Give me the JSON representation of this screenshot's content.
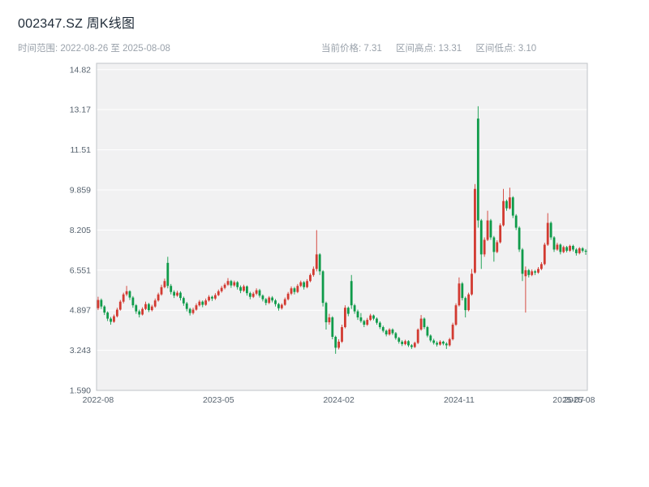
{
  "header": {
    "title": "002347.SZ 周K线图"
  },
  "subheader": {
    "time_range": "时间范围: 2022-08-26 至 2025-08-08",
    "current_price": "当前价格: 7.31",
    "range_high": "区间高点: 13.31",
    "range_low": "区间低点: 3.10"
  },
  "chart_data": {
    "type": "candlestick",
    "title": "002347.SZ 周K线图",
    "xlabel": "",
    "ylabel": "",
    "frequency": "weekly",
    "start_date": "2022-08-26",
    "end_date": "2025-08-08",
    "current_price": 7.31,
    "range_high": 13.31,
    "range_low": 3.1,
    "up_color": "#d23a31",
    "down_color": "#0f9b4a",
    "plot_bg": "#f1f1f2",
    "grid_color": "#ffffff",
    "frame_color": "#c0c4c8",
    "ylim": [
      1.59,
      15.08
    ],
    "y_ticks": [
      "1.590",
      "3.243",
      "4.897",
      "6.551",
      "8.205",
      "9.859",
      "11.51",
      "13.17",
      "14.82"
    ],
    "x_ticks": [
      {
        "pos": 0,
        "label": "2022-08"
      },
      {
        "pos": 38,
        "label": "2023-05"
      },
      {
        "pos": 76,
        "label": "2024-02"
      },
      {
        "pos": 114,
        "label": "2024-11"
      },
      {
        "pos": 148.5,
        "label": "2025-07"
      },
      {
        "pos": 152,
        "label": "2025-08"
      }
    ],
    "candles": [
      [
        4.98,
        5.45,
        4.9,
        5.32
      ],
      [
        5.32,
        5.38,
        4.95,
        5.05
      ],
      [
        5.05,
        5.1,
        4.7,
        4.8
      ],
      [
        4.8,
        4.85,
        4.45,
        4.55
      ],
      [
        4.55,
        4.62,
        4.3,
        4.42
      ],
      [
        4.42,
        4.72,
        4.38,
        4.65
      ],
      [
        4.65,
        5.0,
        4.6,
        4.92
      ],
      [
        4.92,
        5.32,
        4.88,
        5.25
      ],
      [
        5.25,
        5.62,
        5.18,
        5.55
      ],
      [
        5.55,
        5.9,
        5.48,
        5.68
      ],
      [
        5.68,
        5.72,
        5.32,
        5.42
      ],
      [
        5.42,
        5.48,
        5.0,
        5.1
      ],
      [
        5.1,
        5.15,
        4.75,
        4.85
      ],
      [
        4.85,
        4.92,
        4.6,
        4.72
      ],
      [
        4.72,
        5.02,
        4.68,
        4.95
      ],
      [
        4.95,
        5.25,
        4.9,
        5.15
      ],
      [
        5.15,
        5.2,
        4.82,
        4.9
      ],
      [
        4.9,
        5.12,
        4.85,
        5.05
      ],
      [
        5.05,
        5.38,
        5.0,
        5.3
      ],
      [
        5.3,
        5.62,
        5.25,
        5.55
      ],
      [
        5.55,
        5.95,
        5.5,
        5.85
      ],
      [
        5.85,
        6.2,
        5.8,
        6.1
      ],
      [
        6.85,
        7.1,
        5.8,
        5.9
      ],
      [
        5.9,
        5.98,
        5.55,
        5.65
      ],
      [
        5.65,
        5.72,
        5.4,
        5.5
      ],
      [
        5.5,
        5.7,
        5.45,
        5.62
      ],
      [
        5.62,
        5.68,
        5.3,
        5.4
      ],
      [
        5.4,
        5.46,
        5.08,
        5.18
      ],
      [
        5.18,
        5.24,
        4.85,
        4.95
      ],
      [
        4.95,
        5.0,
        4.68,
        4.78
      ],
      [
        4.78,
        5.0,
        4.72,
        4.92
      ],
      [
        4.92,
        5.18,
        4.88,
        5.1
      ],
      [
        5.1,
        5.32,
        5.05,
        5.25
      ],
      [
        5.25,
        5.3,
        5.02,
        5.12
      ],
      [
        5.12,
        5.38,
        5.08,
        5.3
      ],
      [
        5.3,
        5.52,
        5.25,
        5.45
      ],
      [
        5.45,
        5.5,
        5.28,
        5.38
      ],
      [
        5.38,
        5.6,
        5.32,
        5.52
      ],
      [
        5.52,
        5.75,
        5.48,
        5.68
      ],
      [
        5.68,
        5.9,
        5.62,
        5.82
      ],
      [
        5.82,
        6.02,
        5.76,
        5.95
      ],
      [
        5.95,
        6.22,
        5.9,
        6.1
      ],
      [
        6.1,
        6.15,
        5.82,
        5.92
      ],
      [
        5.92,
        6.12,
        5.86,
        6.05
      ],
      [
        6.05,
        6.1,
        5.75,
        5.85
      ],
      [
        5.85,
        5.92,
        5.6,
        5.7
      ],
      [
        5.7,
        5.95,
        5.65,
        5.88
      ],
      [
        5.88,
        5.92,
        5.5,
        5.6
      ],
      [
        5.6,
        5.66,
        5.35,
        5.45
      ],
      [
        5.45,
        5.65,
        5.4,
        5.58
      ],
      [
        5.58,
        5.8,
        5.52,
        5.72
      ],
      [
        5.72,
        5.78,
        5.42,
        5.5
      ],
      [
        5.5,
        5.55,
        5.26,
        5.35
      ],
      [
        5.35,
        5.4,
        5.1,
        5.2
      ],
      [
        5.2,
        5.48,
        5.15,
        5.42
      ],
      [
        5.42,
        5.48,
        5.22,
        5.3
      ],
      [
        5.3,
        5.36,
        5.05,
        5.15
      ],
      [
        5.15,
        5.2,
        4.88,
        4.98
      ],
      [
        4.98,
        5.18,
        4.92,
        5.12
      ],
      [
        5.12,
        5.42,
        5.08,
        5.35
      ],
      [
        5.35,
        5.65,
        5.3,
        5.58
      ],
      [
        5.58,
        5.88,
        5.52,
        5.8
      ],
      [
        5.8,
        5.86,
        5.55,
        5.65
      ],
      [
        5.65,
        5.98,
        5.6,
        5.9
      ],
      [
        5.9,
        6.12,
        5.85,
        6.05
      ],
      [
        6.05,
        6.1,
        5.75,
        5.85
      ],
      [
        5.85,
        6.18,
        5.8,
        6.1
      ],
      [
        6.1,
        6.42,
        6.05,
        6.35
      ],
      [
        6.35,
        6.7,
        6.28,
        6.6
      ],
      [
        6.6,
        8.2,
        6.5,
        7.2
      ],
      [
        7.2,
        7.25,
        6.35,
        6.5
      ],
      [
        6.5,
        6.55,
        5.05,
        5.2
      ],
      [
        5.2,
        5.25,
        4.1,
        4.4
      ],
      [
        4.4,
        4.75,
        4.3,
        4.6
      ],
      [
        4.6,
        4.65,
        3.7,
        3.8
      ],
      [
        3.8,
        3.85,
        3.1,
        3.35
      ],
      [
        3.35,
        3.7,
        3.28,
        3.6
      ],
      [
        3.6,
        4.3,
        3.55,
        4.2
      ],
      [
        4.2,
        5.1,
        4.15,
        5.0
      ],
      [
        5.0,
        5.05,
        4.65,
        4.75
      ],
      [
        6.1,
        6.35,
        4.95,
        5.1
      ],
      [
        5.1,
        5.16,
        4.75,
        4.85
      ],
      [
        4.85,
        4.92,
        4.5,
        4.6
      ],
      [
        4.6,
        4.78,
        4.38,
        4.45
      ],
      [
        4.45,
        4.5,
        4.2,
        4.3
      ],
      [
        4.3,
        4.58,
        4.25,
        4.5
      ],
      [
        4.5,
        4.75,
        4.45,
        4.68
      ],
      [
        4.68,
        4.72,
        4.48,
        4.55
      ],
      [
        4.55,
        4.6,
        4.3,
        4.38
      ],
      [
        4.38,
        4.44,
        4.12,
        4.2
      ],
      [
        4.2,
        4.26,
        3.98,
        4.05
      ],
      [
        4.05,
        4.1,
        3.82,
        3.9
      ],
      [
        3.9,
        4.16,
        3.85,
        4.1
      ],
      [
        4.1,
        4.15,
        3.88,
        3.95
      ],
      [
        3.95,
        4.0,
        3.68,
        3.75
      ],
      [
        3.75,
        3.8,
        3.52,
        3.6
      ],
      [
        3.6,
        3.66,
        3.42,
        3.5
      ],
      [
        3.5,
        3.68,
        3.45,
        3.62
      ],
      [
        3.62,
        3.66,
        3.38,
        3.45
      ],
      [
        3.45,
        3.5,
        3.3,
        3.38
      ],
      [
        3.38,
        3.6,
        3.34,
        3.55
      ],
      [
        3.55,
        4.15,
        3.5,
        4.1
      ],
      [
        4.1,
        4.7,
        4.05,
        4.55
      ],
      [
        4.55,
        4.6,
        4.12,
        4.2
      ],
      [
        4.2,
        4.25,
        3.78,
        3.85
      ],
      [
        3.85,
        3.9,
        3.58,
        3.65
      ],
      [
        3.65,
        3.72,
        3.48,
        3.55
      ],
      [
        3.55,
        3.62,
        3.4,
        3.48
      ],
      [
        3.48,
        3.66,
        3.44,
        3.6
      ],
      [
        3.6,
        3.64,
        3.45,
        3.52
      ],
      [
        3.52,
        3.58,
        3.3,
        3.45
      ],
      [
        3.45,
        3.76,
        3.4,
        3.7
      ],
      [
        3.7,
        4.38,
        3.65,
        4.3
      ],
      [
        4.3,
        5.18,
        4.25,
        5.1
      ],
      [
        5.1,
        6.25,
        5.05,
        6.0
      ],
      [
        6.0,
        6.06,
        5.3,
        5.4
      ],
      [
        5.4,
        5.46,
        4.6,
        4.9
      ],
      [
        4.9,
        5.62,
        4.85,
        5.55
      ],
      [
        5.55,
        6.6,
        5.5,
        6.4
      ],
      [
        6.45,
        10.1,
        6.4,
        9.9
      ],
      [
        12.8,
        13.31,
        8.3,
        8.6
      ],
      [
        8.6,
        8.66,
        6.6,
        7.2
      ],
      [
        7.2,
        7.9,
        7.1,
        7.8
      ],
      [
        7.8,
        9.0,
        7.75,
        8.6
      ],
      [
        8.6,
        8.66,
        7.8,
        7.9
      ],
      [
        7.9,
        7.96,
        6.9,
        7.3
      ],
      [
        7.3,
        7.78,
        7.25,
        7.7
      ],
      [
        7.7,
        8.48,
        7.65,
        8.4
      ],
      [
        8.4,
        9.9,
        8.35,
        9.4
      ],
      [
        9.4,
        9.46,
        9.0,
        9.1
      ],
      [
        9.1,
        9.95,
        9.05,
        9.55
      ],
      [
        9.55,
        9.6,
        8.7,
        8.8
      ],
      [
        8.8,
        8.86,
        8.2,
        8.3
      ],
      [
        8.3,
        8.36,
        7.3,
        7.4
      ],
      [
        7.4,
        7.46,
        6.1,
        6.4
      ],
      [
        6.3,
        6.7,
        4.8,
        6.55
      ],
      [
        6.55,
        6.6,
        6.25,
        6.35
      ],
      [
        6.35,
        6.58,
        6.3,
        6.5
      ],
      [
        6.5,
        6.56,
        6.35,
        6.45
      ],
      [
        6.45,
        6.68,
        6.4,
        6.6
      ],
      [
        6.6,
        6.88,
        6.55,
        6.8
      ],
      [
        6.8,
        7.68,
        6.75,
        7.6
      ],
      [
        7.6,
        8.9,
        7.55,
        8.5
      ],
      [
        8.5,
        8.56,
        7.8,
        7.9
      ],
      [
        7.9,
        7.95,
        7.3,
        7.4
      ],
      [
        7.4,
        7.68,
        7.35,
        7.6
      ],
      [
        7.6,
        7.65,
        7.2,
        7.3
      ],
      [
        7.3,
        7.56,
        7.25,
        7.5
      ],
      [
        7.5,
        7.55,
        7.28,
        7.35
      ],
      [
        7.35,
        7.6,
        7.3,
        7.55
      ],
      [
        7.55,
        7.6,
        7.32,
        7.4
      ],
      [
        7.4,
        7.46,
        7.15,
        7.25
      ],
      [
        7.25,
        7.5,
        7.2,
        7.45
      ],
      [
        7.45,
        7.5,
        7.28,
        7.35
      ],
      [
        7.35,
        7.42,
        7.18,
        7.31
      ]
    ]
  }
}
